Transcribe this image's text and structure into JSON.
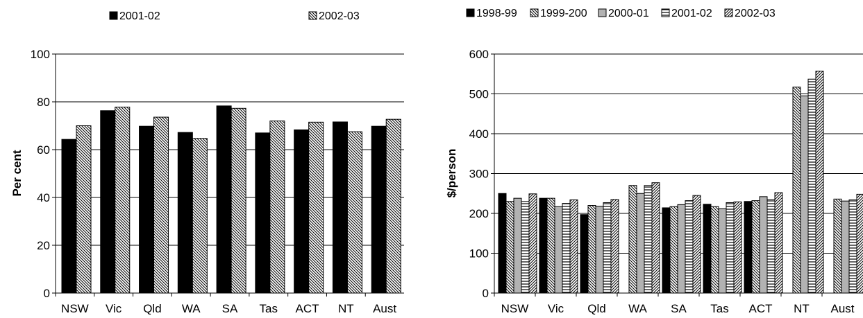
{
  "chart_data": [
    {
      "type": "bar",
      "title": "",
      "xlabel": "",
      "ylabel": "Per cent",
      "ylim": [
        0,
        100
      ],
      "yticks": [
        0,
        20,
        40,
        60,
        80,
        100
      ],
      "grid": true,
      "legend_position": "top",
      "categories": [
        "NSW",
        "Vic",
        "Qld",
        "WA",
        "SA",
        "Tas",
        "ACT",
        "NT",
        "Aust"
      ],
      "series": [
        {
          "name": "2001-02",
          "pattern": "solid",
          "values": [
            64.3,
            76.3,
            69.8,
            67.2,
            78.3,
            67.0,
            68.3,
            71.6,
            69.8
          ]
        },
        {
          "name": "2002-03",
          "pattern": "diag-down",
          "values": [
            70.0,
            77.8,
            73.6,
            64.7,
            77.3,
            72.0,
            71.5,
            67.5,
            72.7
          ]
        }
      ]
    },
    {
      "type": "bar",
      "title": "",
      "xlabel": "",
      "ylabel": "$/person",
      "ylim": [
        0,
        600
      ],
      "yticks": [
        0,
        100,
        200,
        300,
        400,
        500,
        600
      ],
      "grid": true,
      "legend_position": "top",
      "categories": [
        "NSW",
        "Vic",
        "Qld",
        "WA",
        "SA",
        "Tas",
        "ACT",
        "NT",
        "Aust"
      ],
      "series": [
        {
          "name": "1998-99",
          "pattern": "solid",
          "values": [
            250,
            238,
            197,
            0,
            214,
            223,
            230,
            0,
            0
          ]
        },
        {
          "name": "1999-200",
          "pattern": "diag-down",
          "values": [
            230,
            238,
            220,
            270,
            217,
            217,
            232,
            517,
            236
          ]
        },
        {
          "name": "2000-01",
          "pattern": "grey",
          "values": [
            238,
            217,
            218,
            250,
            222,
            212,
            242,
            495,
            231
          ]
        },
        {
          "name": "2001-02",
          "pattern": "hlines",
          "values": [
            230,
            225,
            227,
            270,
            232,
            227,
            235,
            537,
            234
          ]
        },
        {
          "name": "2002-03",
          "pattern": "diag-up",
          "values": [
            249,
            234,
            235,
            277,
            245,
            229,
            252,
            557,
            248
          ]
        }
      ]
    }
  ]
}
